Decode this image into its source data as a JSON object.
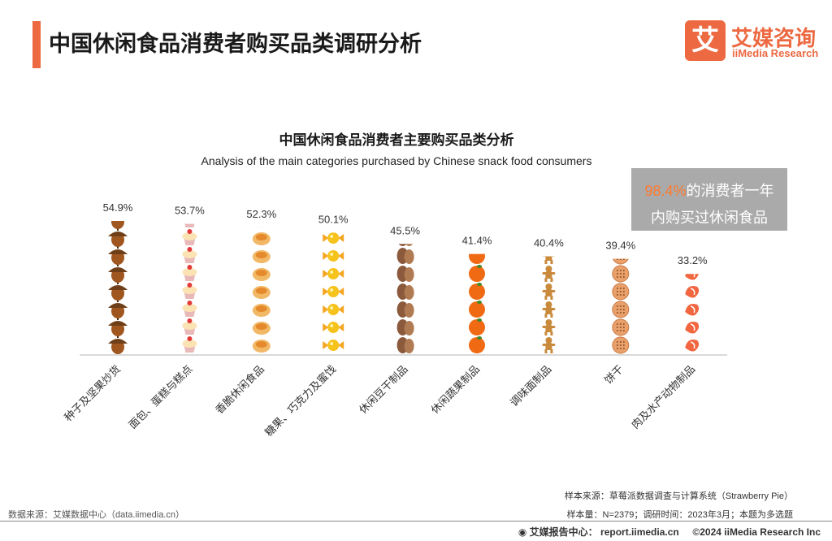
{
  "header": {
    "title": "中国休闲食品消费者购买品类调研分析",
    "logo_mark": "艾",
    "logo_cn": "艾媒咨询",
    "logo_en": "iiMedia Research"
  },
  "callout": {
    "highlight": "98.4%",
    "text_line1": "的消费者一年",
    "text_line2": "内购买过休闲食品"
  },
  "chart_data": {
    "type": "bar",
    "title": "中国休闲食品消费者主要购买品类分析",
    "subtitle": "Analysis of the main categories purchased by Chinese snack food consumers",
    "categories": [
      "种子及坚果炒货",
      "面包、蛋糕与糕点",
      "香脆休闲食品",
      "糖果、巧克力及蜜饯",
      "休闲豆干制品",
      "休闲蔬果制品",
      "调味面制品",
      "饼干",
      "肉及水产动物制品"
    ],
    "values": [
      54.9,
      53.7,
      52.3,
      50.1,
      45.5,
      41.4,
      40.4,
      39.4,
      33.2
    ],
    "value_labels": [
      "54.9%",
      "53.7%",
      "52.3%",
      "50.1%",
      "45.5%",
      "41.4%",
      "40.4%",
      "39.4%",
      "33.2%"
    ],
    "icons": [
      "acorn-icon",
      "cupcake-icon",
      "tart-icon",
      "candy-icon",
      "peanut-icon",
      "orange-icon",
      "gingerbread-icon",
      "biscuit-icon",
      "shrimp-icon"
    ],
    "unit": "%",
    "grid": false,
    "legend": "none"
  },
  "footer": {
    "data_source": "数据来源：艾媒数据中心（data.iimedia.cn）",
    "sample_source": "样本来源：草莓派数据调查与计算系统（Strawberry Pie）",
    "sample_info": "样本量：N=2379；调研时间：2023年3月；本题为多选题",
    "report_center": "艾媒报告中心：",
    "report_url": "report.iimedia.cn",
    "copyright": "©2024  iiMedia Research Inc"
  },
  "colors": {
    "accent": "#ec6941",
    "callout_bg": "#aaaaaa",
    "callout_highlight": "#ff7a2f"
  }
}
